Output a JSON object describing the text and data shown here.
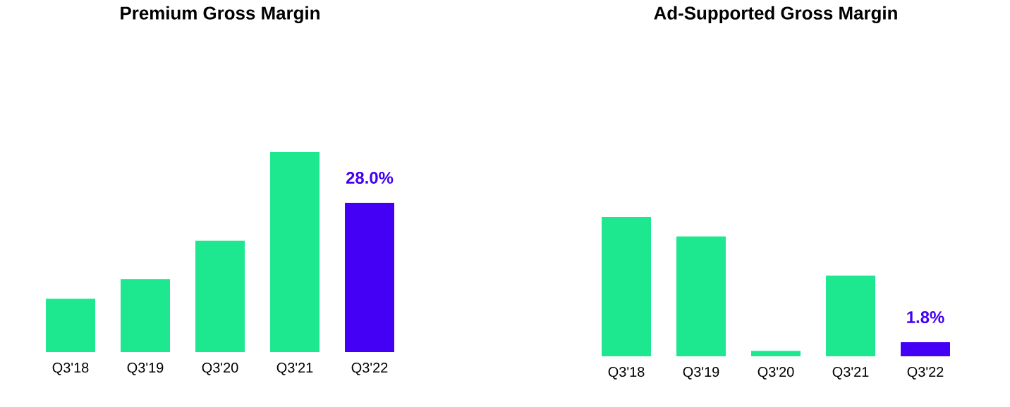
{
  "chart_data": [
    {
      "type": "bar",
      "title": "Premium Gross Margin",
      "categories": [
        "Q3'18",
        "Q3'19",
        "Q3'20",
        "Q3'21",
        "Q3'22"
      ],
      "values": [
        10.0,
        13.7,
        20.9,
        37.5,
        28.0
      ],
      "colors": [
        "#1de88f",
        "#1de88f",
        "#1de88f",
        "#1de88f",
        "#4300f5"
      ],
      "value_labels": [
        null,
        null,
        null,
        null,
        "28.0%"
      ]
    },
    {
      "type": "bar",
      "title": "Ad-Supported Gross Margin",
      "categories": [
        "Q3'18",
        "Q3'19",
        "Q3'20",
        "Q3'21",
        "Q3'22"
      ],
      "values": [
        17.8,
        15.3,
        0.7,
        10.3,
        1.8
      ],
      "colors": [
        "#1de88f",
        "#1de88f",
        "#1de88f",
        "#1de88f",
        "#4300f5"
      ],
      "value_labels": [
        null,
        null,
        null,
        null,
        "1.8%"
      ]
    }
  ]
}
